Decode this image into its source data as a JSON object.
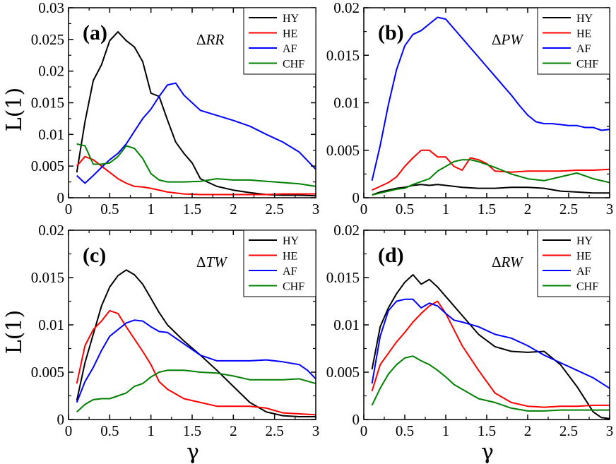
{
  "figure": {
    "xlabel": "γ",
    "ylabel": "L(1)"
  },
  "chart_data": [
    {
      "type": "line",
      "panel": "(a)",
      "label": "ΔRR",
      "label_prefix": "Δ",
      "label_italic": "RR",
      "xlim": [
        0,
        3
      ],
      "ylim": [
        0,
        0.03
      ],
      "xticks": [
        "0",
        "0.5",
        "1",
        "1.5",
        "2",
        "2.5",
        "3"
      ],
      "yticks": [
        "0",
        "0.005",
        "0.01",
        "0.015",
        "0.02",
        "0.025",
        "0.03"
      ],
      "legend_position": "top-right",
      "grid": false,
      "series": [
        {
          "name": "HY",
          "color": "#000000",
          "x": [
            0.1,
            0.2,
            0.3,
            0.4,
            0.5,
            0.6,
            0.7,
            0.8,
            0.9,
            1.0,
            1.1,
            1.2,
            1.3,
            1.4,
            1.5,
            1.6,
            1.8,
            2.0,
            2.2,
            2.4,
            2.6,
            2.8,
            3.0
          ],
          "y": [
            0.004,
            0.012,
            0.0185,
            0.021,
            0.0248,
            0.0262,
            0.0248,
            0.0238,
            0.0215,
            0.0165,
            0.016,
            0.0123,
            0.0088,
            0.007,
            0.0055,
            0.003,
            0.0018,
            0.0012,
            0.0008,
            0.0005,
            0.0004,
            0.0004,
            0.0003
          ]
        },
        {
          "name": "HE",
          "color": "#ff0000",
          "x": [
            0.1,
            0.2,
            0.3,
            0.4,
            0.5,
            0.6,
            0.7,
            0.8,
            0.9,
            1.0,
            1.2,
            1.4,
            1.6,
            1.8,
            2.0,
            2.2,
            2.4,
            2.6,
            2.8,
            3.0
          ],
          "y": [
            0.005,
            0.0065,
            0.006,
            0.005,
            0.004,
            0.003,
            0.0023,
            0.0018,
            0.0017,
            0.0015,
            0.0009,
            0.0006,
            0.0005,
            0.0005,
            0.0005,
            0.0005,
            0.0005,
            0.0006,
            0.0006,
            0.0006
          ]
        },
        {
          "name": "AF",
          "color": "#0000ff",
          "x": [
            0.1,
            0.2,
            0.3,
            0.4,
            0.5,
            0.6,
            0.7,
            0.8,
            0.9,
            1.0,
            1.1,
            1.2,
            1.3,
            1.4,
            1.5,
            1.6,
            1.8,
            2.0,
            2.2,
            2.4,
            2.6,
            2.8,
            3.0
          ],
          "y": [
            0.0035,
            0.0023,
            0.0035,
            0.0048,
            0.006,
            0.007,
            0.0085,
            0.0105,
            0.0125,
            0.014,
            0.016,
            0.0178,
            0.0181,
            0.0162,
            0.015,
            0.0138,
            0.013,
            0.0122,
            0.0113,
            0.01,
            0.0088,
            0.0072,
            0.0045
          ]
        },
        {
          "name": "CHF",
          "color": "#008000",
          "x": [
            0.1,
            0.2,
            0.3,
            0.4,
            0.5,
            0.6,
            0.7,
            0.8,
            0.9,
            1.0,
            1.1,
            1.2,
            1.4,
            1.6,
            1.8,
            2.0,
            2.2,
            2.4,
            2.6,
            2.8,
            3.0
          ],
          "y": [
            0.0085,
            0.0082,
            0.0053,
            0.0053,
            0.0055,
            0.0065,
            0.0082,
            0.0078,
            0.0062,
            0.0038,
            0.0028,
            0.0025,
            0.0025,
            0.0026,
            0.003,
            0.0028,
            0.0028,
            0.0026,
            0.0024,
            0.0022,
            0.0018
          ]
        }
      ]
    },
    {
      "type": "line",
      "panel": "(b)",
      "label": "ΔPW",
      "label_prefix": "Δ",
      "label_italic": "PW",
      "xlim": [
        0,
        3
      ],
      "ylim": [
        0,
        0.02
      ],
      "xticks": [
        "0",
        "0.5",
        "1",
        "1.5",
        "2",
        "2.5",
        "3"
      ],
      "yticks": [
        "0",
        "0.005",
        "0.01",
        "0.015",
        "0.02"
      ],
      "legend_position": "top-right",
      "grid": false,
      "series": [
        {
          "name": "HY",
          "color": "#000000",
          "x": [
            0.1,
            0.2,
            0.3,
            0.4,
            0.5,
            0.6,
            0.7,
            0.8,
            0.9,
            1.0,
            1.1,
            1.2,
            1.4,
            1.6,
            1.8,
            2.0,
            2.2,
            2.4,
            2.6,
            2.8,
            3.0
          ],
          "y": [
            0.0003,
            0.0006,
            0.0008,
            0.001,
            0.0011,
            0.0013,
            0.0014,
            0.0013,
            0.0014,
            0.0013,
            0.0012,
            0.0011,
            0.001,
            0.001,
            0.0011,
            0.0011,
            0.001,
            0.0007,
            0.0006,
            0.0005,
            0.0005
          ]
        },
        {
          "name": "HE",
          "color": "#ff0000",
          "x": [
            0.1,
            0.2,
            0.3,
            0.4,
            0.5,
            0.6,
            0.7,
            0.8,
            0.9,
            1.0,
            1.1,
            1.2,
            1.3,
            1.4,
            1.5,
            1.6,
            1.8,
            2.0,
            2.2,
            2.4,
            2.6,
            2.8,
            3.0
          ],
          "y": [
            0.0008,
            0.0012,
            0.0016,
            0.0022,
            0.0033,
            0.0042,
            0.005,
            0.005,
            0.0043,
            0.0043,
            0.0033,
            0.0029,
            0.0042,
            0.004,
            0.0036,
            0.0028,
            0.0027,
            0.0028,
            0.0028,
            0.0028,
            0.0029,
            0.0029,
            0.003
          ]
        },
        {
          "name": "AF",
          "color": "#0000ff",
          "x": [
            0.1,
            0.2,
            0.3,
            0.4,
            0.5,
            0.6,
            0.7,
            0.8,
            0.9,
            1.0,
            1.1,
            1.2,
            1.3,
            1.4,
            1.5,
            1.6,
            1.7,
            1.8,
            1.9,
            2.0,
            2.1,
            2.2,
            2.3,
            2.4,
            2.5,
            2.6,
            2.7,
            2.8,
            2.9,
            3.0
          ],
          "y": [
            0.0018,
            0.0055,
            0.0098,
            0.0135,
            0.016,
            0.0172,
            0.0176,
            0.0183,
            0.019,
            0.0188,
            0.0178,
            0.0168,
            0.0158,
            0.0148,
            0.0138,
            0.0128,
            0.0118,
            0.0108,
            0.0097,
            0.0087,
            0.008,
            0.0078,
            0.0078,
            0.0077,
            0.0076,
            0.0076,
            0.0074,
            0.0074,
            0.0071,
            0.0072
          ]
        },
        {
          "name": "CHF",
          "color": "#008000",
          "x": [
            0.1,
            0.2,
            0.3,
            0.4,
            0.5,
            0.6,
            0.7,
            0.8,
            0.9,
            1.0,
            1.1,
            1.2,
            1.3,
            1.4,
            1.5,
            1.6,
            1.8,
            2.0,
            2.2,
            2.4,
            2.6,
            2.8,
            3.0
          ],
          "y": [
            0.0003,
            0.0005,
            0.0007,
            0.0009,
            0.001,
            0.0014,
            0.0017,
            0.002,
            0.0028,
            0.0033,
            0.0038,
            0.004,
            0.004,
            0.0038,
            0.0035,
            0.0032,
            0.0025,
            0.002,
            0.0018,
            0.0022,
            0.0026,
            0.002,
            0.0016
          ]
        }
      ]
    },
    {
      "type": "line",
      "panel": "(c)",
      "label": "ΔTW",
      "label_prefix": "Δ",
      "label_italic": "TW",
      "xlim": [
        0,
        3
      ],
      "ylim": [
        0,
        0.02
      ],
      "xticks": [
        "0",
        "0.5",
        "1",
        "1.5",
        "2",
        "2.5",
        "3"
      ],
      "yticks": [
        "0",
        "0.005",
        "0.01",
        "0.015",
        "0.02"
      ],
      "legend_position": "top-right",
      "grid": false,
      "series": [
        {
          "name": "HY",
          "color": "#000000",
          "x": [
            0.1,
            0.2,
            0.3,
            0.4,
            0.5,
            0.6,
            0.7,
            0.8,
            0.9,
            1.0,
            1.1,
            1.2,
            1.4,
            1.6,
            1.8,
            2.0,
            2.2,
            2.4,
            2.6,
            2.8,
            3.0
          ],
          "y": [
            0.002,
            0.006,
            0.009,
            0.012,
            0.014,
            0.0152,
            0.0158,
            0.0153,
            0.0143,
            0.0128,
            0.0113,
            0.01,
            0.0083,
            0.0068,
            0.0052,
            0.0035,
            0.0018,
            0.0008,
            0.0004,
            0.0003,
            0.0003
          ]
        },
        {
          "name": "HE",
          "color": "#ff0000",
          "x": [
            0.1,
            0.2,
            0.3,
            0.4,
            0.5,
            0.6,
            0.7,
            0.8,
            0.9,
            1.0,
            1.1,
            1.2,
            1.4,
            1.6,
            1.8,
            2.0,
            2.2,
            2.4,
            2.6,
            2.8,
            3.0
          ],
          "y": [
            0.0038,
            0.0078,
            0.0095,
            0.0104,
            0.0115,
            0.0112,
            0.0098,
            0.0085,
            0.0072,
            0.0058,
            0.004,
            0.0032,
            0.0022,
            0.0018,
            0.0014,
            0.0014,
            0.0014,
            0.0012,
            0.0007,
            0.0006,
            0.0005
          ]
        },
        {
          "name": "AF",
          "color": "#0000ff",
          "x": [
            0.1,
            0.2,
            0.3,
            0.4,
            0.5,
            0.6,
            0.7,
            0.8,
            0.9,
            1.0,
            1.1,
            1.2,
            1.4,
            1.6,
            1.8,
            2.0,
            2.2,
            2.4,
            2.6,
            2.8,
            2.9,
            3.0
          ],
          "y": [
            0.0018,
            0.004,
            0.0055,
            0.0073,
            0.0088,
            0.0095,
            0.0102,
            0.0105,
            0.0104,
            0.0098,
            0.0093,
            0.0092,
            0.008,
            0.0068,
            0.0062,
            0.0062,
            0.0062,
            0.0063,
            0.0061,
            0.0058,
            0.0052,
            0.0043
          ]
        },
        {
          "name": "CHF",
          "color": "#008000",
          "x": [
            0.1,
            0.2,
            0.3,
            0.4,
            0.5,
            0.6,
            0.7,
            0.8,
            0.9,
            1.0,
            1.1,
            1.2,
            1.4,
            1.6,
            1.8,
            2.0,
            2.2,
            2.4,
            2.6,
            2.8,
            3.0
          ],
          "y": [
            0.0008,
            0.0016,
            0.0021,
            0.0022,
            0.0022,
            0.0025,
            0.0028,
            0.0035,
            0.0038,
            0.0045,
            0.005,
            0.0052,
            0.0052,
            0.005,
            0.0049,
            0.0046,
            0.0042,
            0.0042,
            0.0042,
            0.0043,
            0.0038
          ]
        }
      ]
    },
    {
      "type": "line",
      "panel": "(d)",
      "label": "ΔRW",
      "label_prefix": "Δ",
      "label_italic": "RW",
      "xlim": [
        0,
        3
      ],
      "ylim": [
        0,
        0.02
      ],
      "xticks": [
        "0",
        "0.5",
        "1",
        "1.5",
        "2",
        "2.5",
        "3"
      ],
      "yticks": [
        "0",
        "0.005",
        "0.01",
        "0.015",
        "0.02"
      ],
      "legend_position": "top-right",
      "grid": false,
      "series": [
        {
          "name": "HY",
          "color": "#000000",
          "x": [
            0.1,
            0.2,
            0.3,
            0.4,
            0.5,
            0.6,
            0.7,
            0.8,
            0.9,
            1.0,
            1.1,
            1.2,
            1.4,
            1.6,
            1.8,
            2.0,
            2.2,
            2.4,
            2.6,
            2.8,
            2.9,
            3.0
          ],
          "y": [
            0.0053,
            0.0098,
            0.0118,
            0.0133,
            0.0145,
            0.0153,
            0.0143,
            0.0148,
            0.014,
            0.013,
            0.012,
            0.011,
            0.009,
            0.0077,
            0.0072,
            0.0071,
            0.0072,
            0.0058,
            0.0035,
            0.0008,
            0.0002,
            0.0001
          ]
        },
        {
          "name": "HE",
          "color": "#ff0000",
          "x": [
            0.1,
            0.2,
            0.3,
            0.4,
            0.5,
            0.6,
            0.7,
            0.8,
            0.9,
            1.0,
            1.1,
            1.2,
            1.4,
            1.6,
            1.8,
            2.0,
            2.2,
            2.4,
            2.6,
            2.8,
            3.0
          ],
          "y": [
            0.003,
            0.0058,
            0.007,
            0.0082,
            0.0092,
            0.0103,
            0.0112,
            0.012,
            0.0125,
            0.0112,
            0.0095,
            0.0078,
            0.0052,
            0.0028,
            0.0018,
            0.0014,
            0.0013,
            0.0014,
            0.0014,
            0.0015,
            0.0015
          ]
        },
        {
          "name": "AF",
          "color": "#0000ff",
          "x": [
            0.1,
            0.2,
            0.3,
            0.4,
            0.5,
            0.6,
            0.7,
            0.8,
            0.9,
            1.0,
            1.1,
            1.2,
            1.4,
            1.6,
            1.8,
            2.0,
            2.2,
            2.4,
            2.6,
            2.8,
            3.0
          ],
          "y": [
            0.0038,
            0.0088,
            0.0115,
            0.0125,
            0.0127,
            0.0127,
            0.0118,
            0.0123,
            0.012,
            0.0112,
            0.0105,
            0.0103,
            0.0098,
            0.009,
            0.0086,
            0.0078,
            0.0068,
            0.006,
            0.0052,
            0.0044,
            0.0033
          ]
        },
        {
          "name": "CHF",
          "color": "#008000",
          "x": [
            0.1,
            0.2,
            0.3,
            0.4,
            0.5,
            0.6,
            0.7,
            0.8,
            0.9,
            1.0,
            1.1,
            1.2,
            1.4,
            1.6,
            1.8,
            2.0,
            2.2,
            2.4,
            2.6,
            2.8,
            3.0
          ],
          "y": [
            0.0015,
            0.0033,
            0.0048,
            0.0058,
            0.0065,
            0.0067,
            0.0062,
            0.0058,
            0.0052,
            0.0045,
            0.0037,
            0.0032,
            0.0022,
            0.0018,
            0.0012,
            0.0009,
            0.0009,
            0.001,
            0.001,
            0.001,
            0.001
          ]
        }
      ]
    }
  ]
}
